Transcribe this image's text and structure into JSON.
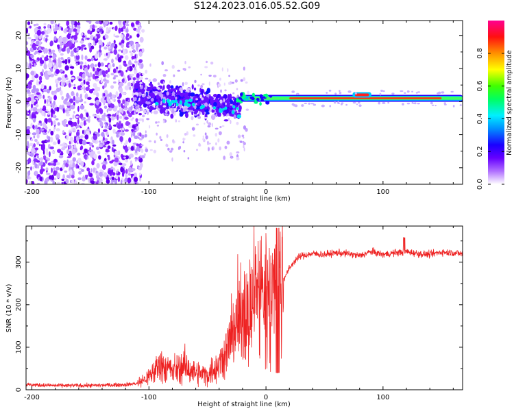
{
  "figure": {
    "title": "S124.2023.016.05.52.G09"
  },
  "chart_data": [
    {
      "type": "heatmap",
      "title": "",
      "xlabel": "Height of straight line (km)",
      "ylabel": "Frequency (Hz)",
      "xlim": [
        -205,
        168
      ],
      "ylim": [
        -25,
        24.5
      ],
      "xticks": [
        -200,
        -100,
        0,
        100
      ],
      "yticks": [
        -20,
        -10,
        0,
        10,
        20
      ],
      "colorbar": {
        "label": "Normalized spectral amplitude",
        "range": [
          0,
          1
        ],
        "ticks": [
          "0.0",
          "0.2",
          "0.4",
          "0.6",
          "0.8"
        ],
        "tick_values": [
          0,
          0.2,
          0.4,
          0.6,
          0.8
        ],
        "colormap": [
          "#ffffff",
          "#8800ff",
          "#2200ff",
          "#00a8ff",
          "#00ffcc",
          "#00ff00",
          "#c8ff00",
          "#ffff00",
          "#ff8000",
          "#ff0000",
          "#ff0080"
        ]
      },
      "features": [
        {
          "description_value": "scattered noise",
          "x_range": [
            -205,
            -110
          ],
          "freq_range": [
            -25,
            24.5
          ],
          "amplitude": 0.05
        },
        {
          "description_value": "band",
          "x_range": [
            -110,
            -20
          ],
          "freq_range": [
            -13,
            7
          ],
          "amplitude": 0.15
        },
        {
          "description_value": "carrier",
          "x_range": [
            -20,
            168
          ],
          "freq_center": 1.0,
          "amplitude": 0.9
        }
      ]
    },
    {
      "type": "line",
      "title": "",
      "xlabel": "Height of straight line (km)",
      "ylabel": "SNR (10 * v/v)",
      "xlim": [
        -205,
        168
      ],
      "ylim": [
        0,
        385
      ],
      "xticks": [
        -200,
        -100,
        0,
        100
      ],
      "yticks": [
        0,
        100,
        200,
        300
      ],
      "color": "#ee2222",
      "series": [
        {
          "name": "",
          "x": [
            -205,
            -180,
            -150,
            -120,
            -110,
            -100,
            -90,
            -80,
            -70,
            -60,
            -50,
            -40,
            -35,
            -30,
            -25,
            -20,
            -15,
            -10,
            -5,
            0,
            5,
            10,
            15,
            20,
            25,
            30,
            40,
            50,
            60,
            70,
            80,
            90,
            100,
            110,
            120,
            130,
            140,
            150,
            160,
            168
          ],
          "y": [
            12,
            10,
            10,
            12,
            15,
            30,
            60,
            45,
            55,
            40,
            35,
            60,
            80,
            120,
            160,
            200,
            170,
            220,
            230,
            210,
            230,
            240,
            260,
            285,
            305,
            315,
            320,
            318,
            322,
            320,
            315,
            325,
            318,
            322,
            325,
            320,
            318,
            324,
            322,
            320
          ]
        }
      ]
    }
  ]
}
